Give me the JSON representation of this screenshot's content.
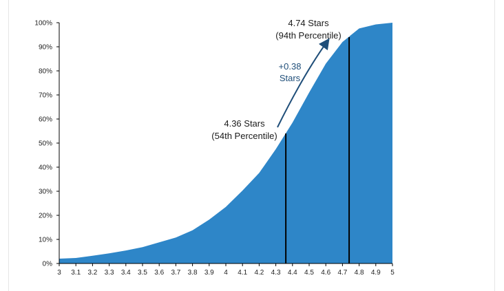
{
  "chart_data": {
    "type": "area",
    "title": "",
    "xlabel": "",
    "ylabel": "",
    "x": [
      3,
      3.1,
      3.2,
      3.3,
      3.4,
      3.5,
      3.6,
      3.7,
      3.8,
      3.9,
      4,
      4.1,
      4.2,
      4.3,
      4.4,
      4.5,
      4.6,
      4.7,
      4.8,
      4.9,
      5
    ],
    "series": [
      {
        "values": [
          2,
          2.3,
          3.2,
          4.2,
          5.4,
          6.8,
          8.8,
          10.8,
          13.8,
          18.2,
          23.5,
          30.3,
          37.6,
          47.5,
          58.5,
          71,
          83,
          92,
          97.6,
          99.3,
          100
        ]
      }
    ],
    "xlim": [
      3,
      5
    ],
    "ylim": [
      0,
      100
    ],
    "x_tick_labels": [
      "3",
      "3.1",
      "3.2",
      "3.3",
      "3.4",
      "3.5",
      "3.6",
      "3.7",
      "3.8",
      "3.9",
      "4",
      "4.1",
      "4.2",
      "4.3",
      "4.4",
      "4.5",
      "4.6",
      "4.7",
      "4.8",
      "4.9",
      "5"
    ],
    "y_tick_labels": [
      "0%",
      "10%",
      "20%",
      "30%",
      "40%",
      "50%",
      "60%",
      "70%",
      "80%",
      "90%",
      "100%"
    ],
    "grid": false,
    "colors": {
      "area": "#2e86c8",
      "markers": "#000000",
      "arrow": "#1f4e79",
      "axis": "#000000"
    },
    "markers": [
      {
        "x": 4.36,
        "y": 54,
        "label_line1": "4.36 Stars",
        "label_line2": "(54th Percentile)"
      },
      {
        "x": 4.74,
        "y": 94,
        "label_line1": "4.74 Stars",
        "label_line2": "(94th Percentile)"
      }
    ],
    "arrow_annotation": {
      "line1": "+0.38",
      "line2": "Stars"
    }
  }
}
